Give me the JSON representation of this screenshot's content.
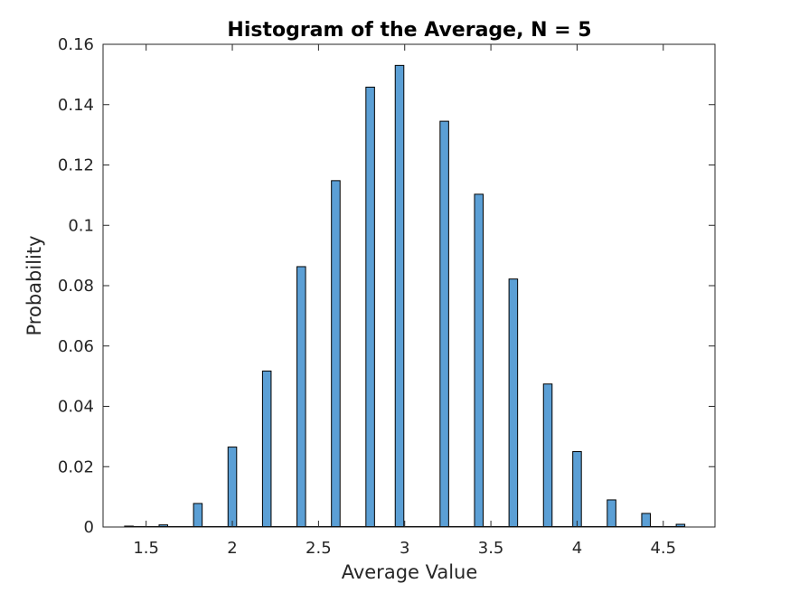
{
  "chart_data": {
    "type": "bar",
    "title": "Histogram of the Average, N = 5",
    "xlabel": "Average Value",
    "ylabel": "Probability",
    "xlim": [
      1.25,
      4.8
    ],
    "ylim": [
      0,
      0.16
    ],
    "xticks": [
      1.5,
      2,
      2.5,
      3,
      3.5,
      4,
      4.5
    ],
    "xtick_labels": [
      "1.5",
      "2",
      "2.5",
      "3",
      "3.5",
      "4",
      "4.5"
    ],
    "yticks": [
      0,
      0.02,
      0.04,
      0.06,
      0.08,
      0.1,
      0.12,
      0.14,
      0.16
    ],
    "ytick_labels": [
      "0",
      "0.02",
      "0.04",
      "0.06",
      "0.08",
      "0.1",
      "0.12",
      "0.14",
      "0.16"
    ],
    "bar_color": "#5b9fd5",
    "bar_edge_color": "#000000",
    "grid": false,
    "bin_width": 0.05,
    "bars": [
      {
        "x": 1.4,
        "value": 0.0003
      },
      {
        "x": 1.6,
        "value": 0.0007
      },
      {
        "x": 1.8,
        "value": 0.0078
      },
      {
        "x": 2.0,
        "value": 0.0265
      },
      {
        "x": 2.2,
        "value": 0.0517
      },
      {
        "x": 2.4,
        "value": 0.0863
      },
      {
        "x": 2.6,
        "value": 0.1148
      },
      {
        "x": 2.8,
        "value": 0.1458
      },
      {
        "x": 2.97,
        "value": 0.153
      },
      {
        "x": 3.23,
        "value": 0.1345
      },
      {
        "x": 3.43,
        "value": 0.1103
      },
      {
        "x": 3.63,
        "value": 0.0822
      },
      {
        "x": 3.83,
        "value": 0.0474
      },
      {
        "x": 4.0,
        "value": 0.025
      },
      {
        "x": 4.2,
        "value": 0.009
      },
      {
        "x": 4.4,
        "value": 0.0045
      },
      {
        "x": 4.6,
        "value": 0.0009
      }
    ]
  }
}
